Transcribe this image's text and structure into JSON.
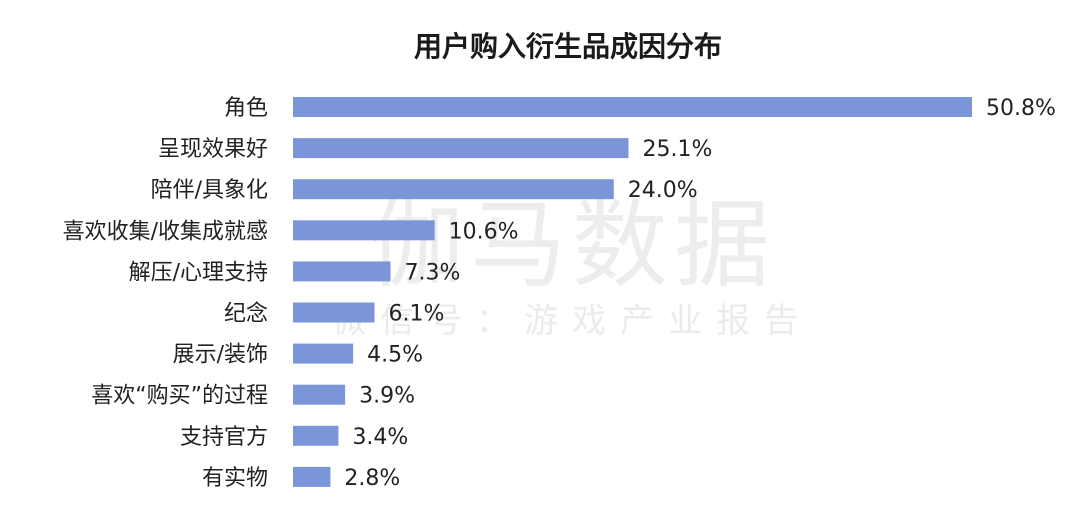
{
  "watermark": {
    "main": "伽马数据",
    "sub": "微信号：游戏产业报告"
  },
  "chart_data": {
    "type": "bar",
    "orientation": "horizontal",
    "title": "用户购入衍生品成因分布",
    "xlabel": "",
    "ylabel": "",
    "xlim": [
      0,
      50.8
    ],
    "grid": false,
    "legend": "none",
    "bar_color": "#7b96d8",
    "categories": [
      "角色",
      "呈现效果好",
      "陪伴/具象化",
      "喜欢收集/收集成就感",
      "解压/心理支持",
      "纪念",
      "展示/装饰",
      "喜欢“购买”的过程",
      "支持官方",
      "有实物"
    ],
    "values": [
      50.8,
      25.1,
      24.0,
      10.6,
      7.3,
      6.1,
      4.5,
      3.9,
      3.4,
      2.8
    ],
    "value_labels": [
      "50.8%",
      "25.1%",
      "24.0%",
      "10.6%",
      "7.3%",
      "6.1%",
      "4.5%",
      "3.9%",
      "3.4%",
      "2.8%"
    ]
  }
}
